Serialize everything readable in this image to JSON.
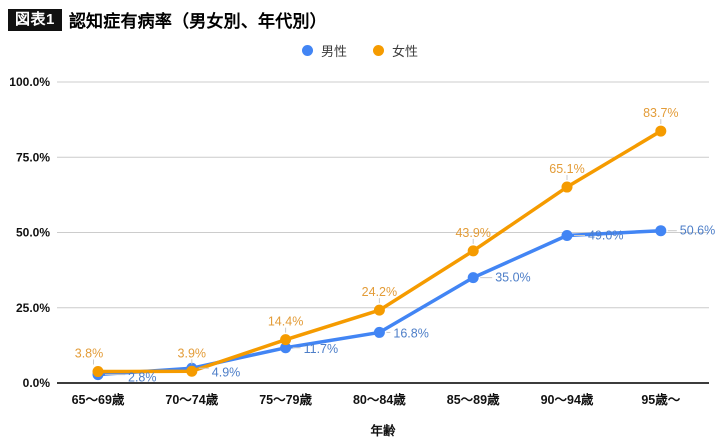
{
  "header": {
    "badge": "図表1",
    "title": "認知症有病率（男女別、年代別）"
  },
  "legend": [
    {
      "label": "男性",
      "color": "#4285f4"
    },
    {
      "label": "女性",
      "color": "#f59b00"
    }
  ],
  "chart_data": {
    "type": "line",
    "title": "認知症有病率（男女別、年代別）",
    "categories": [
      "65～69歳",
      "70～74歳",
      "75～79歳",
      "80～84歳",
      "85～89歳",
      "90～94歳",
      "95歳～"
    ],
    "series": [
      {
        "name": "男性",
        "color": "#4285f4",
        "label_color": "#4d7ec8",
        "values": [
          2.8,
          4.9,
          11.7,
          16.8,
          35.0,
          49.0,
          50.6
        ]
      },
      {
        "name": "女性",
        "color": "#f59b00",
        "label_color": "#e39c38",
        "values": [
          3.8,
          3.9,
          14.4,
          24.2,
          43.9,
          65.1,
          83.7
        ]
      }
    ],
    "xlabel": "年齢",
    "ylabel": "",
    "y_ticks": [
      {
        "value": 0,
        "label": "0.0%"
      },
      {
        "value": 25,
        "label": "25.0%"
      },
      {
        "value": 50,
        "label": "50.0%"
      },
      {
        "value": 75,
        "label": "75.0%"
      },
      {
        "value": 100,
        "label": "100.0%"
      }
    ],
    "ylim": [
      0,
      100
    ],
    "grid": true,
    "legend_position": "top",
    "annotations": "percent-one-decimal"
  },
  "colors": {
    "background": "#ffffff",
    "gridline": "#cccccc",
    "axis_line": "#3c3c3c",
    "tick_text": "#111111",
    "leader_line": "#c9c9c9"
  }
}
